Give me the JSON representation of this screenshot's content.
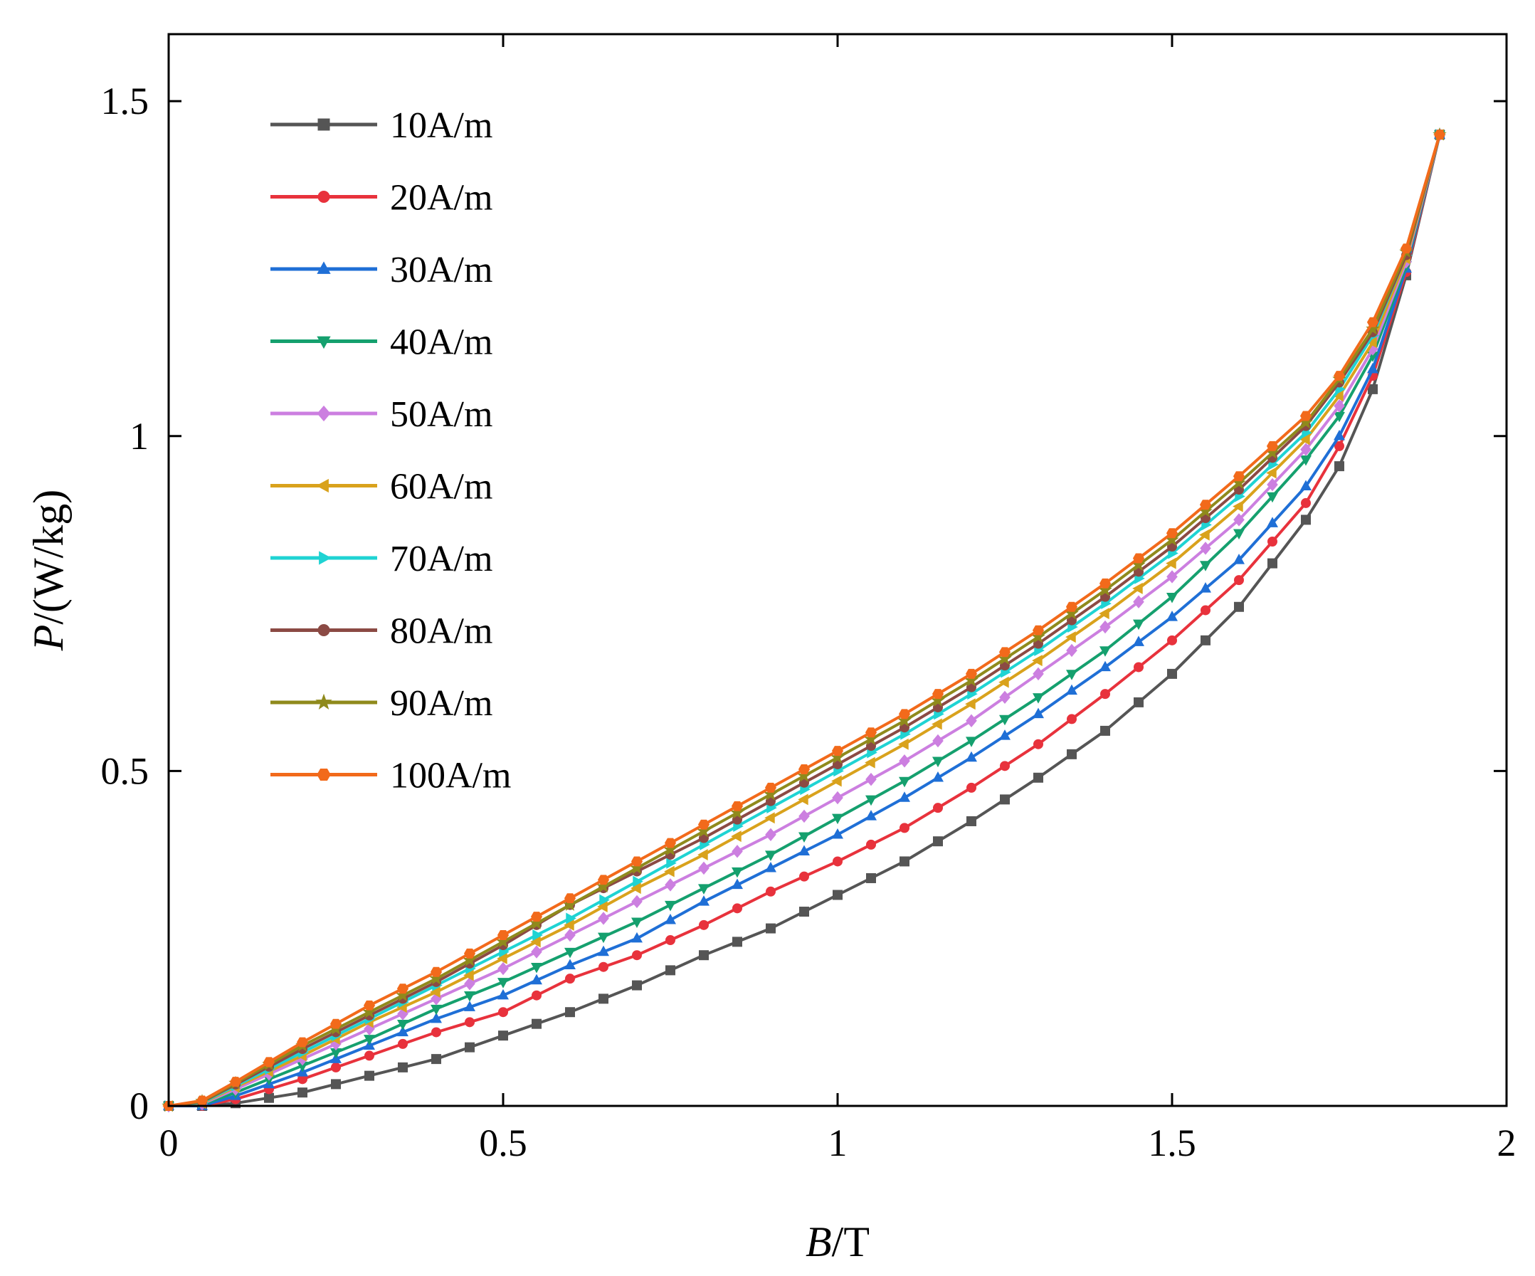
{
  "chart_data": {
    "type": "line",
    "title": "",
    "xlabel_italic": "B",
    "xlabel_unit": "/T",
    "ylabel_italic": "P",
    "ylabel_unit": "/(W/kg)",
    "xlim": [
      0,
      2
    ],
    "ylim": [
      0,
      1.6
    ],
    "xticks": [
      0,
      0.5,
      1,
      1.5,
      2
    ],
    "xtick_labels": [
      "0",
      "0.5",
      "1",
      "1.5",
      "2"
    ],
    "yticks": [
      0,
      0.5,
      1,
      1.5
    ],
    "ytick_labels": [
      "0",
      "0.5",
      "1",
      "1.5"
    ],
    "grid": false,
    "legend_position": "top-left",
    "series": [
      {
        "name": "10A/m",
        "color": "#555555",
        "marker": "square",
        "anchors": [
          [
            0,
            0
          ],
          [
            0.05,
            0
          ],
          [
            0.1,
            0.004
          ],
          [
            0.2,
            0.02
          ],
          [
            0.3,
            0.045
          ],
          [
            0.4,
            0.07
          ],
          [
            0.5,
            0.105
          ],
          [
            0.6,
            0.14
          ],
          [
            0.7,
            0.18
          ],
          [
            0.8,
            0.225
          ],
          [
            0.9,
            0.265
          ],
          [
            1.0,
            0.315
          ],
          [
            1.1,
            0.365
          ],
          [
            1.2,
            0.425
          ],
          [
            1.3,
            0.49
          ],
          [
            1.4,
            0.56
          ],
          [
            1.5,
            0.645
          ],
          [
            1.6,
            0.745
          ],
          [
            1.7,
            0.875
          ],
          [
            1.75,
            0.955
          ],
          [
            1.8,
            1.07
          ],
          [
            1.85,
            1.24
          ],
          [
            1.9,
            1.45
          ]
        ]
      },
      {
        "name": "20A/m",
        "color": "#e8323c",
        "marker": "circle",
        "anchors": [
          [
            0,
            0
          ],
          [
            0.05,
            0
          ],
          [
            0.1,
            0.01
          ],
          [
            0.2,
            0.04
          ],
          [
            0.3,
            0.075
          ],
          [
            0.4,
            0.11
          ],
          [
            0.5,
            0.14
          ],
          [
            0.6,
            0.19
          ],
          [
            0.7,
            0.225
          ],
          [
            0.8,
            0.27
          ],
          [
            0.9,
            0.32
          ],
          [
            1.0,
            0.365
          ],
          [
            1.1,
            0.415
          ],
          [
            1.2,
            0.475
          ],
          [
            1.3,
            0.54
          ],
          [
            1.4,
            0.615
          ],
          [
            1.5,
            0.695
          ],
          [
            1.6,
            0.785
          ],
          [
            1.7,
            0.9
          ],
          [
            1.75,
            0.985
          ],
          [
            1.8,
            1.09
          ],
          [
            1.85,
            1.245
          ],
          [
            1.9,
            1.45
          ]
        ]
      },
      {
        "name": "30A/m",
        "color": "#1f6fd6",
        "marker": "triangle-up",
        "anchors": [
          [
            0,
            0
          ],
          [
            0.05,
            0
          ],
          [
            0.1,
            0.015
          ],
          [
            0.2,
            0.05
          ],
          [
            0.3,
            0.09
          ],
          [
            0.4,
            0.13
          ],
          [
            0.5,
            0.165
          ],
          [
            0.6,
            0.21
          ],
          [
            0.7,
            0.25
          ],
          [
            0.8,
            0.305
          ],
          [
            0.9,
            0.355
          ],
          [
            1.0,
            0.405
          ],
          [
            1.1,
            0.46
          ],
          [
            1.2,
            0.52
          ],
          [
            1.3,
            0.585
          ],
          [
            1.4,
            0.655
          ],
          [
            1.5,
            0.73
          ],
          [
            1.6,
            0.815
          ],
          [
            1.7,
            0.925
          ],
          [
            1.75,
            1.0
          ],
          [
            1.8,
            1.1
          ],
          [
            1.85,
            1.25
          ],
          [
            1.9,
            1.45
          ]
        ]
      },
      {
        "name": "40A/m",
        "color": "#15a06e",
        "marker": "triangle-down",
        "anchors": [
          [
            0,
            0
          ],
          [
            0.05,
            0.002
          ],
          [
            0.1,
            0.02
          ],
          [
            0.2,
            0.06
          ],
          [
            0.3,
            0.1
          ],
          [
            0.4,
            0.145
          ],
          [
            0.5,
            0.185
          ],
          [
            0.6,
            0.23
          ],
          [
            0.7,
            0.275
          ],
          [
            0.8,
            0.325
          ],
          [
            0.9,
            0.375
          ],
          [
            1.0,
            0.43
          ],
          [
            1.1,
            0.485
          ],
          [
            1.2,
            0.545
          ],
          [
            1.3,
            0.61
          ],
          [
            1.4,
            0.68
          ],
          [
            1.5,
            0.76
          ],
          [
            1.6,
            0.855
          ],
          [
            1.7,
            0.965
          ],
          [
            1.75,
            1.03
          ],
          [
            1.8,
            1.12
          ],
          [
            1.85,
            1.255
          ],
          [
            1.9,
            1.45
          ]
        ]
      },
      {
        "name": "50A/m",
        "color": "#cc7fe0",
        "marker": "diamond",
        "anchors": [
          [
            0,
            0
          ],
          [
            0.05,
            0.003
          ],
          [
            0.1,
            0.025
          ],
          [
            0.2,
            0.07
          ],
          [
            0.3,
            0.115
          ],
          [
            0.4,
            0.16
          ],
          [
            0.5,
            0.205
          ],
          [
            0.6,
            0.255
          ],
          [
            0.7,
            0.305
          ],
          [
            0.8,
            0.355
          ],
          [
            0.9,
            0.405
          ],
          [
            1.0,
            0.46
          ],
          [
            1.1,
            0.515
          ],
          [
            1.2,
            0.575
          ],
          [
            1.3,
            0.645
          ],
          [
            1.4,
            0.715
          ],
          [
            1.5,
            0.79
          ],
          [
            1.6,
            0.875
          ],
          [
            1.7,
            0.98
          ],
          [
            1.75,
            1.045
          ],
          [
            1.8,
            1.13
          ],
          [
            1.85,
            1.26
          ],
          [
            1.9,
            1.45
          ]
        ]
      },
      {
        "name": "60A/m",
        "color": "#d9a21c",
        "marker": "triangle-left",
        "anchors": [
          [
            0,
            0
          ],
          [
            0.05,
            0.004
          ],
          [
            0.1,
            0.028
          ],
          [
            0.2,
            0.075
          ],
          [
            0.3,
            0.125
          ],
          [
            0.4,
            0.17
          ],
          [
            0.5,
            0.22
          ],
          [
            0.6,
            0.27
          ],
          [
            0.7,
            0.325
          ],
          [
            0.8,
            0.375
          ],
          [
            0.9,
            0.43
          ],
          [
            1.0,
            0.485
          ],
          [
            1.1,
            0.54
          ],
          [
            1.2,
            0.6
          ],
          [
            1.3,
            0.665
          ],
          [
            1.4,
            0.735
          ],
          [
            1.5,
            0.81
          ],
          [
            1.6,
            0.895
          ],
          [
            1.7,
            0.995
          ],
          [
            1.75,
            1.06
          ],
          [
            1.8,
            1.14
          ],
          [
            1.85,
            1.265
          ],
          [
            1.9,
            1.45
          ]
        ]
      },
      {
        "name": "70A/m",
        "color": "#1fd3d3",
        "marker": "triangle-right",
        "anchors": [
          [
            0,
            0
          ],
          [
            0.05,
            0.005
          ],
          [
            0.1,
            0.03
          ],
          [
            0.2,
            0.08
          ],
          [
            0.3,
            0.13
          ],
          [
            0.4,
            0.18
          ],
          [
            0.5,
            0.23
          ],
          [
            0.6,
            0.28
          ],
          [
            0.7,
            0.335
          ],
          [
            0.8,
            0.39
          ],
          [
            0.9,
            0.445
          ],
          [
            1.0,
            0.5
          ],
          [
            1.1,
            0.555
          ],
          [
            1.2,
            0.615
          ],
          [
            1.3,
            0.68
          ],
          [
            1.4,
            0.75
          ],
          [
            1.5,
            0.825
          ],
          [
            1.6,
            0.91
          ],
          [
            1.7,
            1.005
          ],
          [
            1.75,
            1.07
          ],
          [
            1.8,
            1.15
          ],
          [
            1.85,
            1.27
          ],
          [
            1.9,
            1.45
          ]
        ]
      },
      {
        "name": "80A/m",
        "color": "#8b4a44",
        "marker": "circle",
        "anchors": [
          [
            0,
            0
          ],
          [
            0.05,
            0.006
          ],
          [
            0.1,
            0.032
          ],
          [
            0.2,
            0.085
          ],
          [
            0.3,
            0.135
          ],
          [
            0.4,
            0.185
          ],
          [
            0.5,
            0.24
          ],
          [
            0.6,
            0.3
          ],
          [
            0.7,
            0.35
          ],
          [
            0.8,
            0.4
          ],
          [
            0.9,
            0.455
          ],
          [
            1.0,
            0.51
          ],
          [
            1.1,
            0.565
          ],
          [
            1.2,
            0.625
          ],
          [
            1.3,
            0.69
          ],
          [
            1.4,
            0.76
          ],
          [
            1.5,
            0.835
          ],
          [
            1.6,
            0.92
          ],
          [
            1.7,
            1.015
          ],
          [
            1.75,
            1.08
          ],
          [
            1.8,
            1.155
          ],
          [
            1.85,
            1.27
          ],
          [
            1.9,
            1.45
          ]
        ]
      },
      {
        "name": "90A/m",
        "color": "#8f8a1c",
        "marker": "star",
        "anchors": [
          [
            0,
            0
          ],
          [
            0.05,
            0.007
          ],
          [
            0.1,
            0.034
          ],
          [
            0.2,
            0.09
          ],
          [
            0.3,
            0.14
          ],
          [
            0.4,
            0.19
          ],
          [
            0.5,
            0.245
          ],
          [
            0.6,
            0.3
          ],
          [
            0.7,
            0.355
          ],
          [
            0.8,
            0.41
          ],
          [
            0.9,
            0.465
          ],
          [
            1.0,
            0.52
          ],
          [
            1.1,
            0.575
          ],
          [
            1.2,
            0.635
          ],
          [
            1.3,
            0.7
          ],
          [
            1.4,
            0.77
          ],
          [
            1.5,
            0.845
          ],
          [
            1.6,
            0.93
          ],
          [
            1.7,
            1.02
          ],
          [
            1.75,
            1.085
          ],
          [
            1.8,
            1.16
          ],
          [
            1.85,
            1.275
          ],
          [
            1.9,
            1.45
          ]
        ]
      },
      {
        "name": "100A/m",
        "color": "#f26a1b",
        "marker": "hexagon",
        "anchors": [
          [
            0,
            0
          ],
          [
            0.05,
            0.008
          ],
          [
            0.1,
            0.036
          ],
          [
            0.2,
            0.095
          ],
          [
            0.3,
            0.15
          ],
          [
            0.4,
            0.2
          ],
          [
            0.5,
            0.255
          ],
          [
            0.6,
            0.31
          ],
          [
            0.7,
            0.365
          ],
          [
            0.8,
            0.42
          ],
          [
            0.9,
            0.475
          ],
          [
            1.0,
            0.53
          ],
          [
            1.1,
            0.585
          ],
          [
            1.2,
            0.645
          ],
          [
            1.3,
            0.71
          ],
          [
            1.4,
            0.78
          ],
          [
            1.5,
            0.855
          ],
          [
            1.6,
            0.94
          ],
          [
            1.7,
            1.03
          ],
          [
            1.75,
            1.09
          ],
          [
            1.8,
            1.17
          ],
          [
            1.85,
            1.28
          ],
          [
            1.9,
            1.45
          ]
        ]
      }
    ]
  }
}
